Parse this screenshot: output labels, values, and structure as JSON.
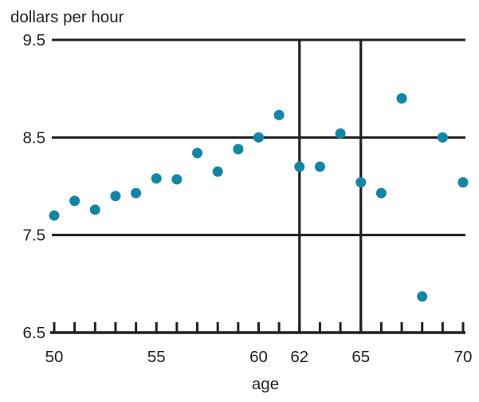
{
  "title": "dollars per hour",
  "chart_data": {
    "type": "scatter",
    "title": "dollars per hour",
    "xlabel": "age",
    "ylabel": "dollars per hour",
    "xlim": [
      50,
      70
    ],
    "ylim": [
      6.5,
      9.5
    ],
    "x": [
      50,
      51,
      52,
      53,
      54,
      55,
      56,
      57,
      58,
      59,
      60,
      61,
      62,
      63,
      64,
      65,
      66,
      67,
      68,
      69,
      70
    ],
    "y": [
      7.7,
      7.85,
      7.76,
      7.9,
      7.93,
      8.08,
      8.07,
      8.34,
      8.15,
      8.38,
      8.5,
      8.73,
      8.2,
      8.2,
      8.54,
      8.04,
      7.93,
      8.9,
      6.87,
      8.5,
      8.04
    ],
    "x_ticks": [
      {
        "value": 50,
        "label": "50"
      },
      {
        "value": 55,
        "label": "55"
      },
      {
        "value": 60,
        "label": "60"
      },
      {
        "value": 62,
        "label": "62"
      },
      {
        "value": 65,
        "label": "65"
      },
      {
        "value": 70,
        "label": "70"
      }
    ],
    "x_minor_tick_step": 1,
    "y_ticks": [
      {
        "value": 9.5,
        "label": "9.5"
      },
      {
        "value": 8.5,
        "label": "8.5"
      },
      {
        "value": 7.5,
        "label": "7.5"
      },
      {
        "value": 6.5,
        "label": "6.5"
      }
    ],
    "y_gridline_values": [
      9.5,
      8.5,
      7.5
    ],
    "vertical_line_values": [
      62,
      65
    ],
    "grid": "horizontal gridlines at labeled y values; no legend",
    "point_color": "#1187a7",
    "axis_color": "#231f20"
  }
}
